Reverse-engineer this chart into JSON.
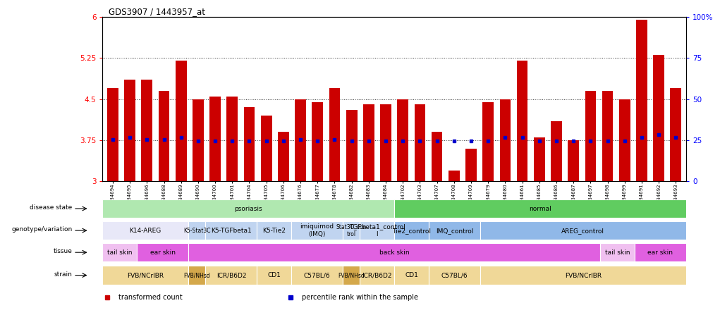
{
  "title": "GDS3907 / 1443957_at",
  "samples": [
    "GSM684694",
    "GSM684695",
    "GSM684696",
    "GSM684688",
    "GSM684689",
    "GSM684690",
    "GSM684700",
    "GSM684701",
    "GSM684704",
    "GSM684705",
    "GSM684706",
    "GSM684676",
    "GSM684677",
    "GSM684678",
    "GSM684682",
    "GSM684683",
    "GSM684684",
    "GSM684702",
    "GSM684703",
    "GSM684707",
    "GSM684708",
    "GSM684709",
    "GSM684679",
    "GSM684680",
    "GSM684661",
    "GSM684685",
    "GSM684686",
    "GSM684687",
    "GSM684697",
    "GSM684698",
    "GSM684699",
    "GSM684691",
    "GSM684692",
    "GSM684693"
  ],
  "bar_values": [
    4.7,
    4.85,
    4.85,
    4.65,
    5.2,
    4.5,
    4.55,
    4.55,
    4.35,
    4.2,
    3.9,
    4.5,
    4.45,
    4.7,
    4.3,
    4.4,
    4.4,
    4.5,
    4.4,
    3.9,
    3.2,
    3.6,
    4.45,
    4.5,
    5.2,
    3.8,
    4.1,
    3.75,
    4.65,
    4.65,
    4.5,
    5.95,
    5.3,
    4.7
  ],
  "percentile_values": [
    3.76,
    3.8,
    3.76,
    3.76,
    3.8,
    3.73,
    3.73,
    3.73,
    3.73,
    3.73,
    3.73,
    3.76,
    3.73,
    3.76,
    3.73,
    3.73,
    3.73,
    3.73,
    3.73,
    3.73,
    3.73,
    3.73,
    3.73,
    3.8,
    3.8,
    3.73,
    3.73,
    3.73,
    3.73,
    3.73,
    3.73,
    3.8,
    3.85,
    3.8
  ],
  "ymin": 3.0,
  "ymax": 6.0,
  "yticks": [
    3.0,
    3.75,
    4.5,
    5.25,
    6.0
  ],
  "ytick_labels": [
    "3",
    "3.75",
    "4.5",
    "5.25",
    "6"
  ],
  "right_yticks_pct": [
    0,
    25,
    50,
    75,
    100
  ],
  "right_ytick_labels": [
    "0",
    "25",
    "50",
    "75",
    "100%"
  ],
  "bar_color": "#cc0000",
  "percentile_color": "#0000cc",
  "background_color": "#ffffff",
  "disease_state_groups": [
    {
      "label": "psoriasis",
      "start": 0,
      "end": 17,
      "color": "#b0e8b0"
    },
    {
      "label": "normal",
      "start": 17,
      "end": 34,
      "color": "#60cc60"
    }
  ],
  "genotype_groups": [
    {
      "label": "K14-AREG",
      "start": 0,
      "end": 5,
      "color": "#e8e8f8"
    },
    {
      "label": "K5-Stat3C",
      "start": 5,
      "end": 6,
      "color": "#c0d4f0"
    },
    {
      "label": "K5-TGFbeta1",
      "start": 6,
      "end": 9,
      "color": "#c0d4f0"
    },
    {
      "label": "K5-Tie2",
      "start": 9,
      "end": 11,
      "color": "#c0d4f0"
    },
    {
      "label": "imiquimod\n(IMQ)",
      "start": 11,
      "end": 14,
      "color": "#c0d4f0"
    },
    {
      "label": "Stat3C_con\ntrol",
      "start": 14,
      "end": 15,
      "color": "#c0d4f0"
    },
    {
      "label": "TGFbeta1_control\nl",
      "start": 15,
      "end": 17,
      "color": "#c0d4f0"
    },
    {
      "label": "Tie2_control",
      "start": 17,
      "end": 19,
      "color": "#90b8e8"
    },
    {
      "label": "IMQ_control",
      "start": 19,
      "end": 22,
      "color": "#90b8e8"
    },
    {
      "label": "AREG_control",
      "start": 22,
      "end": 34,
      "color": "#90b8e8"
    }
  ],
  "tissue_groups": [
    {
      "label": "tail skin",
      "start": 0,
      "end": 2,
      "color": "#f0c0f0"
    },
    {
      "label": "ear skin",
      "start": 2,
      "end": 5,
      "color": "#e060e0"
    },
    {
      "label": "back skin",
      "start": 5,
      "end": 29,
      "color": "#e060e0"
    },
    {
      "label": "tail skin",
      "start": 29,
      "end": 31,
      "color": "#f0c0f0"
    },
    {
      "label": "ear skin",
      "start": 31,
      "end": 34,
      "color": "#e060e0"
    }
  ],
  "strain_groups": [
    {
      "label": "FVB/NCrIBR",
      "start": 0,
      "end": 5,
      "color": "#f0d898"
    },
    {
      "label": "FVB/NHsd",
      "start": 5,
      "end": 6,
      "color": "#d4a84b"
    },
    {
      "label": "ICR/B6D2",
      "start": 6,
      "end": 9,
      "color": "#f0d898"
    },
    {
      "label": "CD1",
      "start": 9,
      "end": 11,
      "color": "#f0d898"
    },
    {
      "label": "C57BL/6",
      "start": 11,
      "end": 14,
      "color": "#f0d898"
    },
    {
      "label": "FVB/NHsd",
      "start": 14,
      "end": 15,
      "color": "#d4a84b"
    },
    {
      "label": "ICR/B6D2",
      "start": 15,
      "end": 17,
      "color": "#f0d898"
    },
    {
      "label": "CD1",
      "start": 17,
      "end": 19,
      "color": "#f0d898"
    },
    {
      "label": "C57BL/6",
      "start": 19,
      "end": 22,
      "color": "#f0d898"
    },
    {
      "label": "FVB/NCrIBR",
      "start": 22,
      "end": 34,
      "color": "#f0d898"
    }
  ],
  "row_labels": [
    "disease state",
    "genotype/variation",
    "tissue",
    "strain"
  ],
  "legend_items": [
    {
      "label": "transformed count",
      "color": "#cc0000"
    },
    {
      "label": "percentile rank within the sample",
      "color": "#0000cc"
    }
  ]
}
